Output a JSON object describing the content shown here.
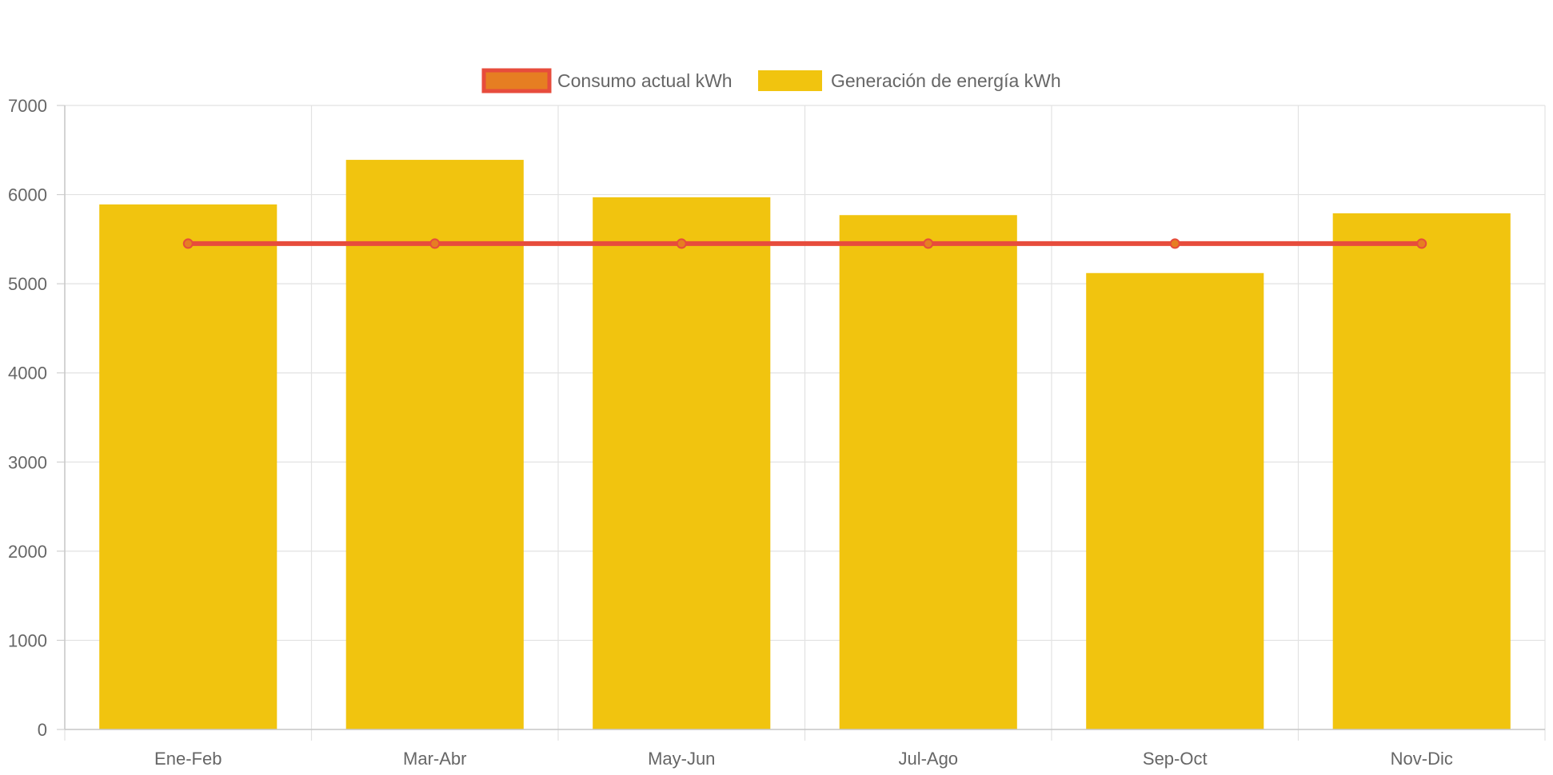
{
  "chart_data": {
    "type": "bar",
    "categories": [
      "Ene-Feb",
      "Mar-Abr",
      "May-Jun",
      "Jul-Ago",
      "Sep-Oct",
      "Nov-Dic"
    ],
    "series": [
      {
        "name": "Consumo actual kWh",
        "type": "line",
        "values": [
          5450,
          5450,
          5450,
          5450,
          5450,
          5450
        ],
        "color": "#e74c3c",
        "point_fill": "#e67e22"
      },
      {
        "name": "Generación de energía kWh",
        "type": "bar",
        "values": [
          5890,
          6390,
          5970,
          5770,
          5120,
          5790
        ],
        "color": "#f1c40f"
      }
    ],
    "ylim": [
      0,
      7000
    ],
    "yticks": [
      "0",
      "1000",
      "2000",
      "3000",
      "4000",
      "5000",
      "6000",
      "7000"
    ],
    "grid": true,
    "legend_position": "top-center"
  }
}
